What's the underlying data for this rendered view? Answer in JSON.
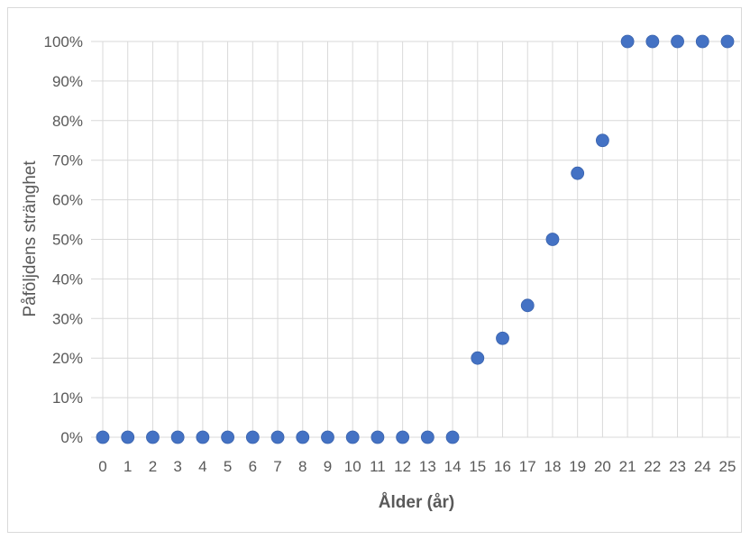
{
  "chart_data": {
    "type": "scatter",
    "title": "",
    "xlabel": "Ålder (år)",
    "ylabel": "Påföljdens stränghet",
    "xlim": [
      0,
      25
    ],
    "ylim": [
      0,
      100
    ],
    "x_ticks": [
      "0",
      "1",
      "2",
      "3",
      "4",
      "5",
      "6",
      "7",
      "8",
      "9",
      "10",
      "11",
      "12",
      "13",
      "14",
      "15",
      "16",
      "17",
      "18",
      "19",
      "20",
      "21",
      "22",
      "23",
      "24",
      "25"
    ],
    "y_ticks": [
      "0%",
      "10%",
      "20%",
      "30%",
      "40%",
      "50%",
      "60%",
      "70%",
      "80%",
      "90%",
      "100%"
    ],
    "grid": true,
    "marker_color": "#4472c4",
    "series": [
      {
        "x": [
          0,
          1,
          2,
          3,
          4,
          5,
          6,
          7,
          8,
          9,
          10,
          11,
          12,
          13,
          14,
          15,
          16,
          17,
          18,
          19,
          20,
          21,
          22,
          23,
          24,
          25
        ],
        "y": [
          0,
          0,
          0,
          0,
          0,
          0,
          0,
          0,
          0,
          0,
          0,
          0,
          0,
          0,
          0,
          20,
          25,
          33.3,
          50,
          66.7,
          75,
          100,
          100,
          100,
          100,
          100
        ]
      }
    ]
  }
}
